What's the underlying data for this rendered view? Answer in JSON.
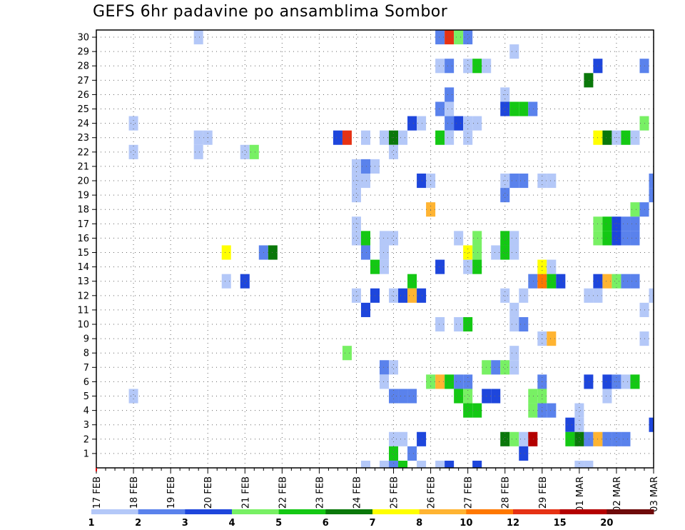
{
  "chart_data": {
    "type": "heatmap",
    "title": "GEFS 6hr padavine po ansamblima Sombor",
    "xlabel": "",
    "ylabel": "",
    "y_ticks": [
      "1",
      "2",
      "3",
      "4",
      "5",
      "6",
      "7",
      "8",
      "9",
      "10",
      "11",
      "12",
      "13",
      "14",
      "15",
      "16",
      "17",
      "18",
      "19",
      "20",
      "21",
      "22",
      "23",
      "24",
      "25",
      "26",
      "27",
      "28",
      "29",
      "30"
    ],
    "y_range": [
      0,
      30
    ],
    "x_ticks": [
      "17 FEB",
      "18 FEB",
      "19 FEB",
      "20 FEB",
      "21 FEB",
      "22 FEB",
      "23 FEB",
      "24 FEB",
      "25 FEB",
      "26 FEB",
      "27 FEB",
      "28 FEB",
      "29 FEB",
      "01 MAR",
      "02 MAR",
      "03 MAR"
    ],
    "x_steps_per_day": 4,
    "x_range_steps": [
      0,
      60
    ],
    "grid": true,
    "legend": {
      "placement": "bottom",
      "labels": [
        "1",
        "2",
        "3",
        "4",
        "5",
        "6",
        "7",
        "8",
        "10",
        "12",
        "15",
        "20"
      ],
      "colors": [
        "#b4c8f8",
        "#5a82ec",
        "#1e46dc",
        "#78f064",
        "#14c814",
        "#0a780a",
        "#ffff00",
        "#ffb432",
        "#ff7800",
        "#e63214",
        "#b40000",
        "#6e0a0a"
      ]
    },
    "cells_note_levels": "each cell: [time step, member row 0-based from bottom, color index]",
    "cells": [
      [
        11,
        29,
        0
      ],
      [
        37,
        29,
        1
      ],
      [
        38,
        29,
        9
      ],
      [
        39,
        29,
        3
      ],
      [
        40,
        29,
        1
      ],
      [
        45,
        28,
        0
      ],
      [
        37,
        27,
        0
      ],
      [
        38,
        27,
        1
      ],
      [
        40,
        27,
        0
      ],
      [
        41,
        27,
        4
      ],
      [
        42,
        27,
        0
      ],
      [
        54,
        27,
        2
      ],
      [
        59,
        27,
        1
      ],
      [
        53,
        26,
        5
      ],
      [
        38,
        25,
        1
      ],
      [
        44,
        25,
        0
      ],
      [
        37,
        24,
        1
      ],
      [
        38,
        24,
        0
      ],
      [
        44,
        24,
        2
      ],
      [
        45,
        24,
        4
      ],
      [
        46,
        24,
        4
      ],
      [
        47,
        24,
        1
      ],
      [
        4,
        23,
        0
      ],
      [
        34,
        23,
        2
      ],
      [
        35,
        23,
        0
      ],
      [
        38,
        23,
        1
      ],
      [
        39,
        23,
        2
      ],
      [
        40,
        23,
        0
      ],
      [
        41,
        23,
        0
      ],
      [
        59,
        23,
        3
      ],
      [
        11,
        22,
        0
      ],
      [
        12,
        22,
        0
      ],
      [
        26,
        22,
        2
      ],
      [
        27,
        22,
        9
      ],
      [
        29,
        22,
        0
      ],
      [
        31,
        22,
        0
      ],
      [
        32,
        22,
        5
      ],
      [
        33,
        22,
        0
      ],
      [
        37,
        22,
        4
      ],
      [
        38,
        22,
        0
      ],
      [
        40,
        22,
        0
      ],
      [
        54,
        22,
        6
      ],
      [
        55,
        22,
        5
      ],
      [
        56,
        22,
        0
      ],
      [
        57,
        22,
        4
      ],
      [
        58,
        22,
        0
      ],
      [
        4,
        21,
        0
      ],
      [
        11,
        21,
        0
      ],
      [
        16,
        21,
        0
      ],
      [
        17,
        21,
        3
      ],
      [
        32,
        21,
        0
      ],
      [
        28,
        20,
        0
      ],
      [
        29,
        20,
        1
      ],
      [
        30,
        20,
        0
      ],
      [
        28,
        19,
        0
      ],
      [
        29,
        19,
        0
      ],
      [
        35,
        19,
        2
      ],
      [
        36,
        19,
        0
      ],
      [
        44,
        19,
        0
      ],
      [
        45,
        19,
        1
      ],
      [
        46,
        19,
        1
      ],
      [
        48,
        19,
        0
      ],
      [
        49,
        19,
        0
      ],
      [
        60,
        19,
        1
      ],
      [
        28,
        18,
        0
      ],
      [
        44,
        18,
        1
      ],
      [
        60,
        18,
        1
      ],
      [
        36,
        17,
        7
      ],
      [
        58,
        17,
        3
      ],
      [
        59,
        17,
        1
      ],
      [
        28,
        16,
        0
      ],
      [
        54,
        16,
        3
      ],
      [
        55,
        16,
        4
      ],
      [
        56,
        16,
        2
      ],
      [
        57,
        16,
        1
      ],
      [
        58,
        16,
        1
      ],
      [
        28,
        15,
        0
      ],
      [
        29,
        15,
        4
      ],
      [
        31,
        15,
        0
      ],
      [
        32,
        15,
        0
      ],
      [
        39,
        15,
        0
      ],
      [
        41,
        15,
        3
      ],
      [
        44,
        15,
        4
      ],
      [
        45,
        15,
        0
      ],
      [
        54,
        15,
        3
      ],
      [
        55,
        15,
        4
      ],
      [
        56,
        15,
        2
      ],
      [
        57,
        15,
        1
      ],
      [
        58,
        15,
        1
      ],
      [
        14,
        14,
        6
      ],
      [
        18,
        14,
        1
      ],
      [
        19,
        14,
        5
      ],
      [
        29,
        14,
        1
      ],
      [
        31,
        14,
        0
      ],
      [
        40,
        14,
        6
      ],
      [
        41,
        14,
        3
      ],
      [
        43,
        14,
        0
      ],
      [
        44,
        14,
        4
      ],
      [
        45,
        14,
        0
      ],
      [
        30,
        13,
        4
      ],
      [
        31,
        13,
        0
      ],
      [
        37,
        13,
        2
      ],
      [
        40,
        13,
        0
      ],
      [
        41,
        13,
        4
      ],
      [
        48,
        13,
        6
      ],
      [
        49,
        13,
        0
      ],
      [
        14,
        12,
        0
      ],
      [
        16,
        12,
        2
      ],
      [
        34,
        12,
        4
      ],
      [
        47,
        12,
        1
      ],
      [
        48,
        12,
        8
      ],
      [
        49,
        12,
        4
      ],
      [
        50,
        12,
        2
      ],
      [
        54,
        12,
        2
      ],
      [
        55,
        12,
        7
      ],
      [
        56,
        12,
        3
      ],
      [
        57,
        12,
        1
      ],
      [
        58,
        12,
        1
      ],
      [
        28,
        11,
        0
      ],
      [
        30,
        11,
        2
      ],
      [
        32,
        11,
        0
      ],
      [
        33,
        11,
        2
      ],
      [
        34,
        11,
        7
      ],
      [
        35,
        11,
        2
      ],
      [
        44,
        11,
        0
      ],
      [
        46,
        11,
        0
      ],
      [
        53,
        11,
        0
      ],
      [
        54,
        11,
        0
      ],
      [
        60,
        11,
        0
      ],
      [
        29,
        10,
        2
      ],
      [
        45,
        10,
        0
      ],
      [
        59,
        10,
        0
      ],
      [
        37,
        9,
        0
      ],
      [
        39,
        9,
        0
      ],
      [
        40,
        9,
        4
      ],
      [
        45,
        9,
        0
      ],
      [
        46,
        9,
        1
      ],
      [
        48,
        8,
        0
      ],
      [
        49,
        8,
        7
      ],
      [
        59,
        8,
        0
      ],
      [
        27,
        7,
        3
      ],
      [
        45,
        7,
        0
      ],
      [
        31,
        6,
        1
      ],
      [
        32,
        6,
        0
      ],
      [
        42,
        6,
        3
      ],
      [
        43,
        6,
        1
      ],
      [
        44,
        6,
        3
      ],
      [
        45,
        6,
        0
      ],
      [
        31,
        5,
        0
      ],
      [
        48,
        5,
        1
      ],
      [
        53,
        5,
        2
      ],
      [
        36,
        5,
        3
      ],
      [
        37,
        5,
        7
      ],
      [
        38,
        5,
        4
      ],
      [
        39,
        5,
        1
      ],
      [
        40,
        5,
        1
      ],
      [
        55,
        5,
        2
      ],
      [
        56,
        5,
        1
      ],
      [
        57,
        5,
        0
      ],
      [
        58,
        5,
        4
      ],
      [
        4,
        4,
        0
      ],
      [
        32,
        4,
        1
      ],
      [
        33,
        4,
        1
      ],
      [
        34,
        4,
        1
      ],
      [
        39,
        4,
        4
      ],
      [
        40,
        4,
        3
      ],
      [
        42,
        4,
        2
      ],
      [
        43,
        4,
        2
      ],
      [
        47,
        4,
        3
      ],
      [
        48,
        4,
        3
      ],
      [
        55,
        4,
        0
      ],
      [
        40,
        3,
        4
      ],
      [
        41,
        3,
        4
      ],
      [
        47,
        3,
        3
      ],
      [
        48,
        3,
        1
      ],
      [
        49,
        3,
        1
      ],
      [
        52,
        3,
        0
      ],
      [
        51,
        2,
        2
      ],
      [
        52,
        2,
        0
      ],
      [
        60,
        2,
        2
      ],
      [
        32,
        1,
        0
      ],
      [
        33,
        1,
        0
      ],
      [
        35,
        1,
        2
      ],
      [
        44,
        1,
        5
      ],
      [
        45,
        1,
        3
      ],
      [
        46,
        1,
        0
      ],
      [
        47,
        1,
        10
      ],
      [
        51,
        1,
        4
      ],
      [
        52,
        1,
        5
      ],
      [
        53,
        1,
        1
      ],
      [
        54,
        1,
        7
      ],
      [
        55,
        1,
        1
      ],
      [
        56,
        1,
        1
      ],
      [
        57,
        1,
        1
      ],
      [
        32,
        0,
        4
      ],
      [
        34,
        0,
        1
      ],
      [
        46,
        0,
        2
      ],
      [
        29,
        -1,
        0
      ],
      [
        31,
        -1,
        0
      ],
      [
        32,
        -1,
        1
      ],
      [
        33,
        -1,
        4
      ],
      [
        35,
        -1,
        0
      ],
      [
        37,
        -1,
        0
      ],
      [
        38,
        -1,
        2
      ],
      [
        41,
        -1,
        2
      ],
      [
        52,
        -1,
        0
      ],
      [
        53,
        -1,
        0
      ]
    ]
  }
}
